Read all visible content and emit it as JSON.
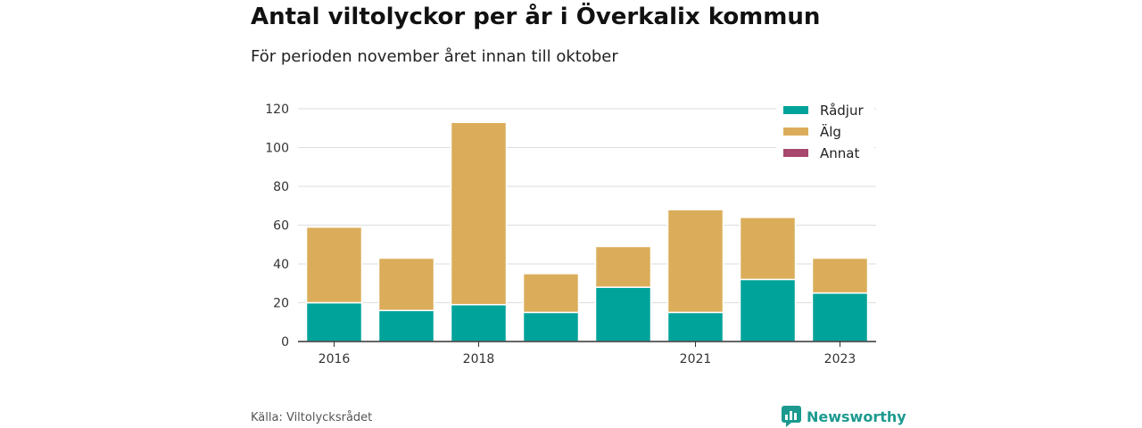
{
  "header": {
    "title": "Antal viltolyckor per år i Överkalix kommun",
    "subtitle": "För perioden november året innan till oktober"
  },
  "footer": {
    "source": "Källa: Viltolycksrådet",
    "brand": "Newsworthy",
    "brand_color": "#1c9a8f"
  },
  "chart_data": {
    "type": "bar",
    "stacked": true,
    "categories": [
      "2016",
      "2017",
      "2018",
      "2019",
      "2020",
      "2021",
      "2022",
      "2023"
    ],
    "x_tick_labels": [
      "2016",
      "",
      "2018",
      "",
      "",
      "2021",
      "",
      "2023"
    ],
    "series": [
      {
        "name": "Rådjur",
        "color": "#00a39a",
        "values": [
          20,
          16,
          19,
          15,
          28,
          15,
          32,
          25
        ]
      },
      {
        "name": "Älg",
        "color": "#dbad5a",
        "values": [
          39,
          27,
          94,
          20,
          21,
          53,
          32,
          18
        ]
      },
      {
        "name": "Annat",
        "color": "#a8486e",
        "values": [
          0,
          0,
          0,
          0,
          0,
          0,
          0,
          0
        ]
      }
    ],
    "ylim": [
      0,
      120
    ],
    "yticks": [
      0,
      20,
      40,
      60,
      80,
      100,
      120
    ],
    "grid": true,
    "legend_position": "top-right"
  }
}
